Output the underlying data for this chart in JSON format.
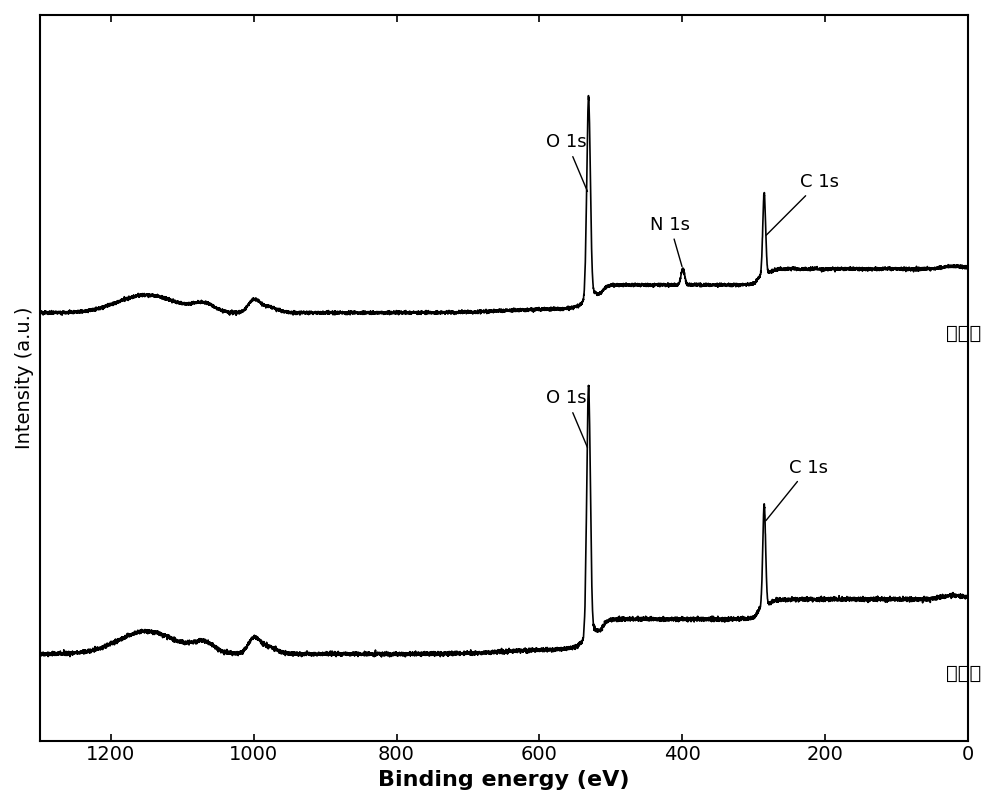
{
  "xlabel": "Binding energy (eV)",
  "ylabel": "Intensity (a.u.)",
  "line_color": "#000000",
  "label1": "微胶囊",
  "label2": "石墨烯",
  "ann1_O1s_label": "O 1s",
  "ann1_C1s_label": "C 1s",
  "ann1_N1s_label": "N 1s",
  "ann2_O1s_label": "O 1s",
  "ann2_C1s_label": "C 1s",
  "tick_labels": [
    "1200",
    "1000",
    "800",
    "600",
    "400",
    "200",
    "0"
  ],
  "tick_values": [
    1200,
    1000,
    800,
    600,
    400,
    200,
    0
  ],
  "xlim_left": 1300,
  "xlim_right": 0,
  "fontsize_ticks": 14,
  "fontsize_label": 16,
  "fontsize_ylabel": 14,
  "fontsize_annot": 13,
  "fontsize_curvelabel": 14,
  "linewidth": 1.2,
  "spine_lw": 1.5
}
